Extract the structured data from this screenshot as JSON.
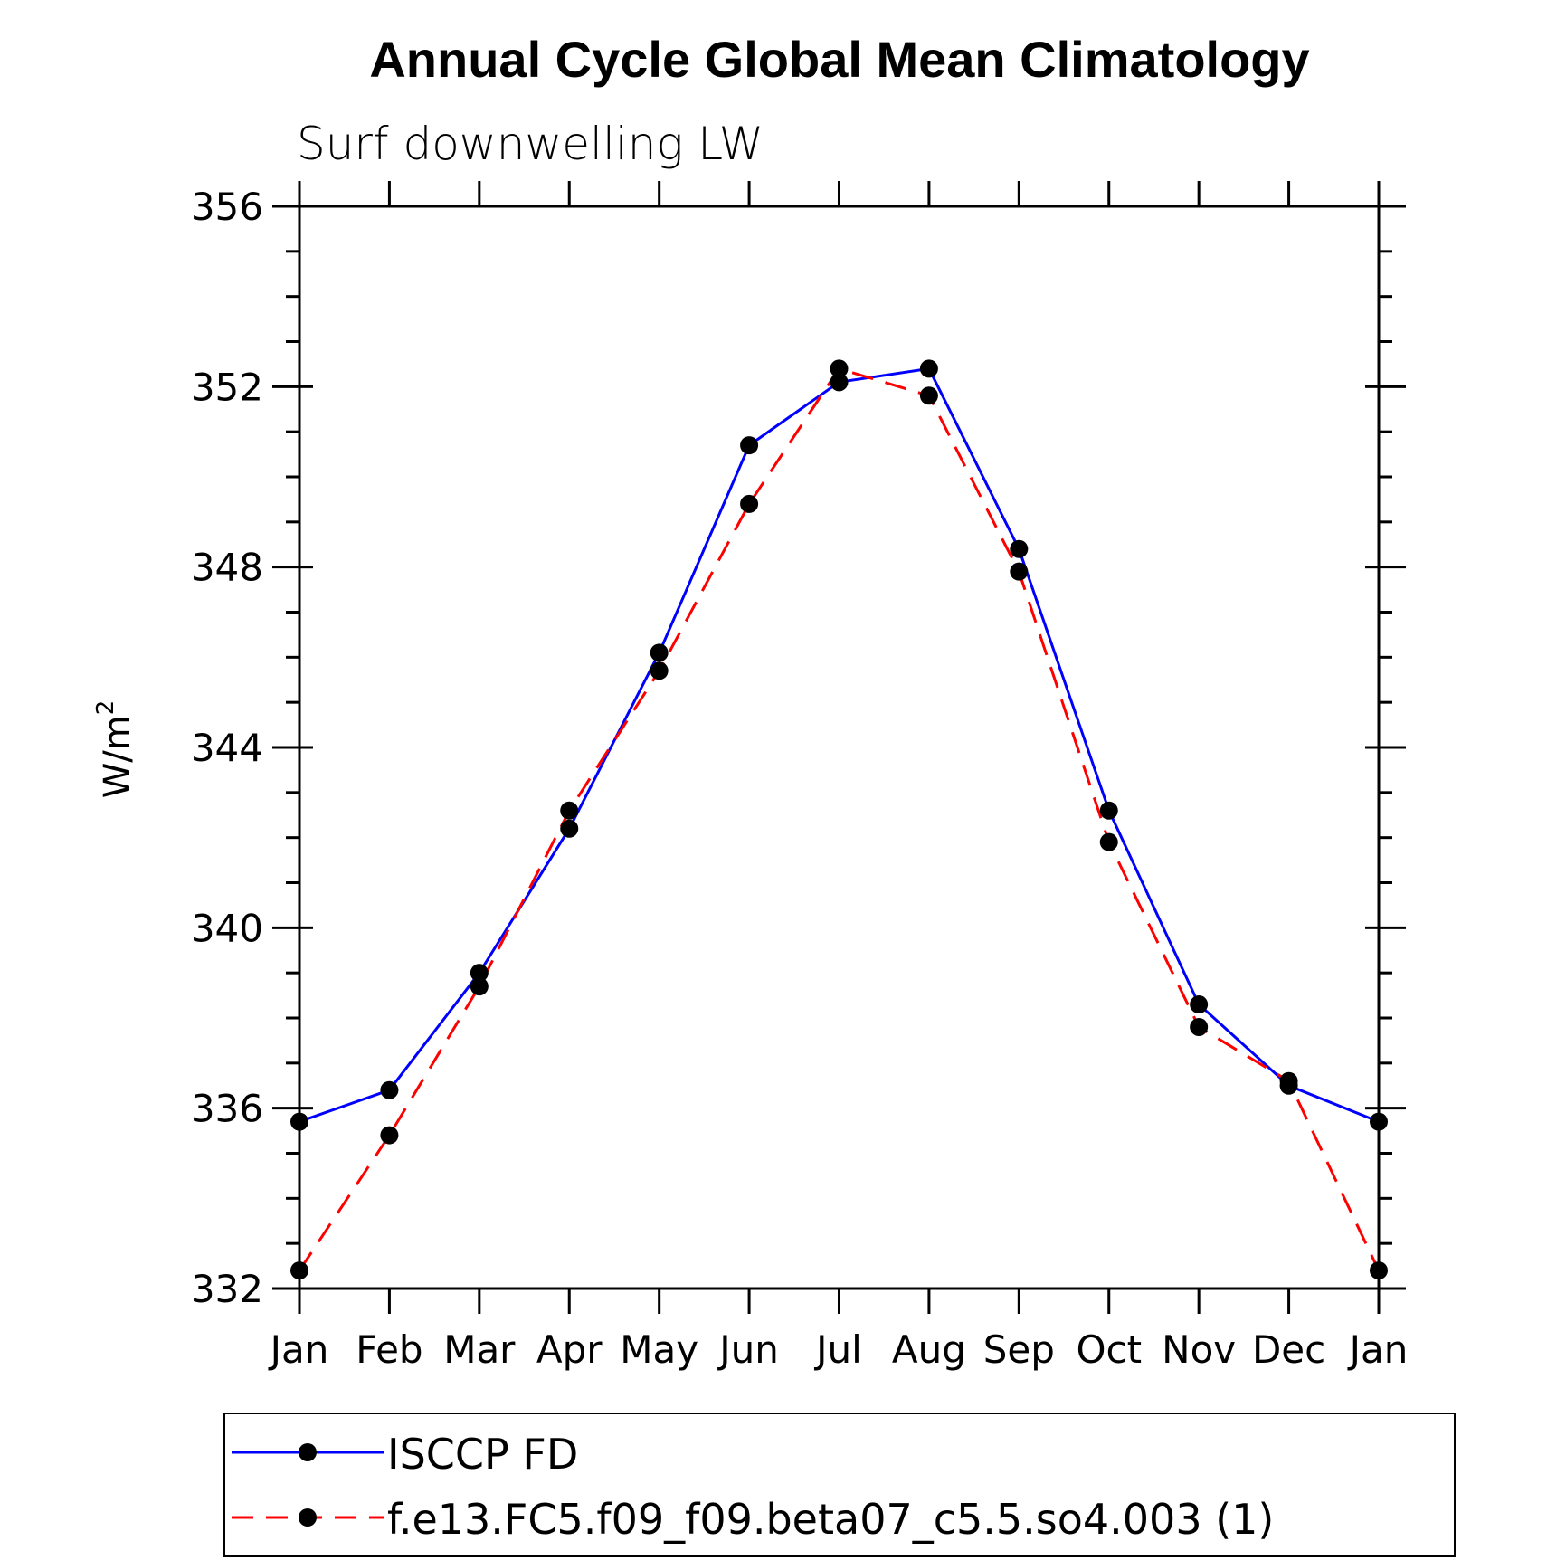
{
  "chart_data": {
    "type": "line",
    "title": "Annual Cycle Global Mean Climatology",
    "subtitle": "Surf downwelling LW",
    "ylabel": "W/m",
    "ylabel_superscript": "2",
    "xlabel": "",
    "categories": [
      "Jan",
      "Feb",
      "Mar",
      "Apr",
      "May",
      "Jun",
      "Jul",
      "Aug",
      "Sep",
      "Oct",
      "Nov",
      "Dec",
      "Jan"
    ],
    "ylim": [
      332,
      356
    ],
    "yticks": [
      332,
      336,
      340,
      344,
      348,
      352,
      356
    ],
    "yminor_step": 1,
    "grid": false,
    "legend_position": "bottom",
    "series": [
      {
        "name": "ISCCP FD",
        "color": "#0000ff",
        "style": "solid",
        "marker": "filled-circle",
        "values": [
          335.7,
          336.4,
          339.0,
          342.2,
          346.1,
          350.7,
          352.1,
          352.4,
          348.4,
          342.6,
          338.3,
          336.5,
          335.7
        ]
      },
      {
        "name": "f.e13.FC5.f09_f09.beta07_c5.5.so4.003 (1)",
        "color": "#ff0000",
        "style": "dashed",
        "marker": "filled-circle",
        "values": [
          332.4,
          335.4,
          338.7,
          342.6,
          345.7,
          349.4,
          352.4,
          351.8,
          347.9,
          341.9,
          337.8,
          336.6,
          332.4
        ]
      }
    ]
  }
}
